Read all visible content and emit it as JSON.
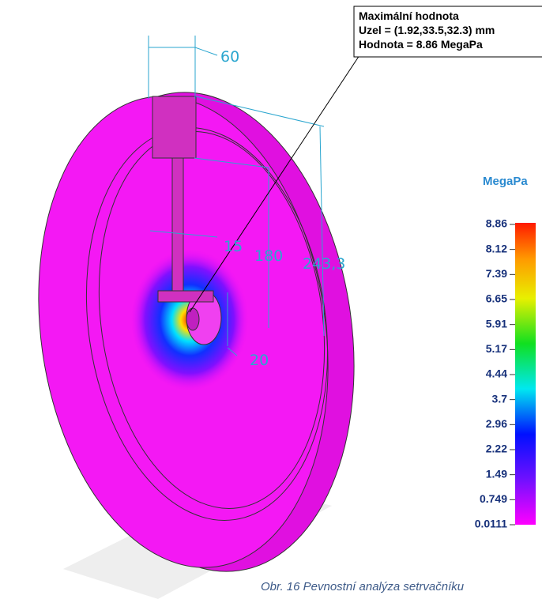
{
  "annotation": {
    "lines": [
      "Maximální hodnota",
      "Uzel = (1.92,33.5,32.3) mm",
      "Hodnota = 8.86 MegaPa"
    ]
  },
  "dimensions": [
    "60",
    "15",
    "180",
    "243,3",
    "20"
  ],
  "legend": {
    "unit": "MegaPa",
    "labels": [
      "8.86",
      "8.12",
      "7.39",
      "6.65",
      "5.91",
      "5.17",
      "4.44",
      "3.7",
      "2.96",
      "2.22",
      "1.49",
      "0.749",
      "0.0111"
    ]
  },
  "caption": "Obr. 16 Pevnostní analýza setrvačníku"
}
